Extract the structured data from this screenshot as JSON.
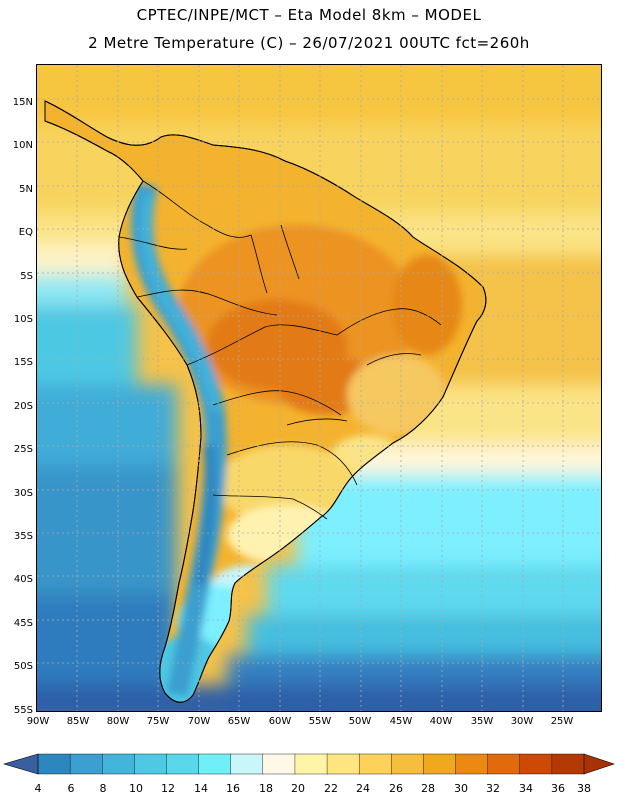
{
  "header": {
    "line1": "CPTEC/INPE/MCT –  Eta Model 8km – MODEL",
    "line2": "2 Metre Temperature (C) – 26/07/2021 00UTC fct=260h"
  },
  "map": {
    "latitude_labels": [
      "15N",
      "10N",
      "5N",
      "EQ",
      "5S",
      "10S",
      "15S",
      "20S",
      "25S",
      "30S",
      "35S",
      "40S",
      "45S",
      "50S",
      "55S"
    ],
    "longitude_labels": [
      "90W",
      "85W",
      "80W",
      "75W",
      "70W",
      "65W",
      "60W",
      "55W",
      "50W",
      "45W",
      "40W",
      "35W",
      "30W",
      "25W"
    ],
    "extent": {
      "lon_min": -90,
      "lon_max": -20,
      "lat_min": -55,
      "lat_max": 20
    },
    "gridlines": true
  },
  "colorbar": {
    "labels": [
      "4",
      "6",
      "8",
      "10",
      "12",
      "14",
      "16",
      "18",
      "20",
      "22",
      "24",
      "26",
      "28",
      "30",
      "32",
      "34",
      "36",
      "38"
    ],
    "colors": [
      "#3a6fb5",
      "#2e86bf",
      "#3b9fd0",
      "#43b4da",
      "#4ec8e3",
      "#5ad8eb",
      "#6ff0f6",
      "#c8f6fb",
      "#fff8e6",
      "#fff5a8",
      "#ffe580",
      "#fcd25a",
      "#f5be3c",
      "#f0a81e",
      "#ea8a14",
      "#e06a0c",
      "#cc4a06",
      "#b33a04"
    ],
    "under_color": "#3a5fa0",
    "over_color": "#a83204"
  }
}
